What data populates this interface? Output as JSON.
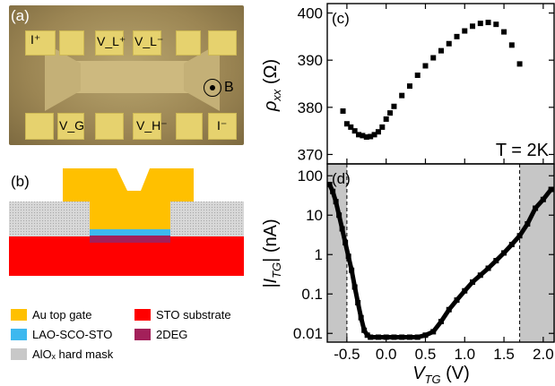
{
  "panels": {
    "a": "(a)",
    "b": "(b)",
    "c": "(c)",
    "d": "(d)"
  },
  "micrograph": {
    "labels": {
      "i_plus": "I⁺",
      "v_l_plus": "V_L⁺",
      "v_l_minus": "V_L⁻",
      "v_g": "V_G",
      "v_h_minus": "V_H⁻",
      "i_minus": "I⁻",
      "b_field": "B"
    }
  },
  "legend": {
    "au": {
      "label": "Au top gate",
      "color": "#ffc000"
    },
    "sto": {
      "label": "STO substrate",
      "color": "#ff0000"
    },
    "lao": {
      "label": "LAO-SCO-STO",
      "color": "#3db8ef"
    },
    "deg": {
      "label": "2DEG",
      "color": "#a3205a"
    },
    "alox": {
      "label": "AlOₓ hard mask",
      "color": "#c8c8c8"
    }
  },
  "chart_data": [
    {
      "type": "scatter",
      "panel": "(c)",
      "ylabel": "ρ_xx (Ω)",
      "annotation": "T = 2K",
      "yticks": [
        370,
        380,
        390,
        400
      ],
      "ylim": [
        368,
        402
      ],
      "xlim": [
        -0.75,
        2.15
      ],
      "x": [
        -0.55,
        -0.5,
        -0.45,
        -0.4,
        -0.35,
        -0.3,
        -0.25,
        -0.2,
        -0.15,
        -0.1,
        -0.05,
        0.0,
        0.05,
        0.1,
        0.2,
        0.3,
        0.4,
        0.5,
        0.6,
        0.7,
        0.8,
        0.9,
        1.0,
        1.1,
        1.2,
        1.3,
        1.4,
        1.5,
        1.6,
        1.7
      ],
      "y": [
        379.2,
        376.5,
        375.8,
        375.0,
        374.2,
        374.0,
        373.7,
        373.8,
        374.2,
        374.8,
        375.8,
        377.5,
        378.8,
        380.2,
        382.5,
        384.5,
        386.8,
        388.8,
        390.5,
        392.0,
        393.5,
        395.0,
        396.2,
        397.2,
        397.8,
        398.0,
        397.6,
        396.0,
        393.2,
        389.2
      ]
    },
    {
      "type": "scatter",
      "panel": "(d)",
      "xlabel": "V_TG (V)",
      "ylabel": "|I_TG| (nA)",
      "scale_y": "log",
      "xticks": [
        "-0.5",
        "0.0",
        "0.5",
        "1.0",
        "1.5",
        "2.0"
      ],
      "xtick_values": [
        -0.5,
        0.0,
        0.5,
        1.0,
        1.5,
        2.0
      ],
      "yticks": [
        "0.01",
        "0.1",
        "1",
        "10",
        "100"
      ],
      "ytick_values": [
        0.01,
        0.1,
        1,
        10,
        100
      ],
      "xlim": [
        -0.75,
        2.15
      ],
      "ylim": [
        0.006,
        200
      ],
      "shaded_regions": [
        [
          -0.75,
          -0.5
        ],
        [
          1.7,
          2.15
        ]
      ],
      "x": [
        -0.72,
        -0.68,
        -0.64,
        -0.6,
        -0.56,
        -0.52,
        -0.48,
        -0.44,
        -0.4,
        -0.36,
        -0.32,
        -0.28,
        -0.24,
        -0.2,
        -0.1,
        0.0,
        0.1,
        0.2,
        0.3,
        0.4,
        0.5,
        0.6,
        0.7,
        0.8,
        0.9,
        1.0,
        1.1,
        1.2,
        1.3,
        1.4,
        1.5,
        1.6,
        1.7,
        1.8,
        1.9,
        2.0,
        2.1
      ],
      "y": [
        60,
        40,
        22,
        10,
        4.5,
        2.0,
        0.9,
        0.4,
        0.15,
        0.06,
        0.025,
        0.012,
        0.009,
        0.008,
        0.008,
        0.008,
        0.008,
        0.008,
        0.008,
        0.008,
        0.009,
        0.011,
        0.02,
        0.04,
        0.07,
        0.12,
        0.2,
        0.3,
        0.45,
        0.7,
        1.1,
        1.8,
        3.0,
        6.0,
        15,
        25,
        45
      ]
    }
  ]
}
